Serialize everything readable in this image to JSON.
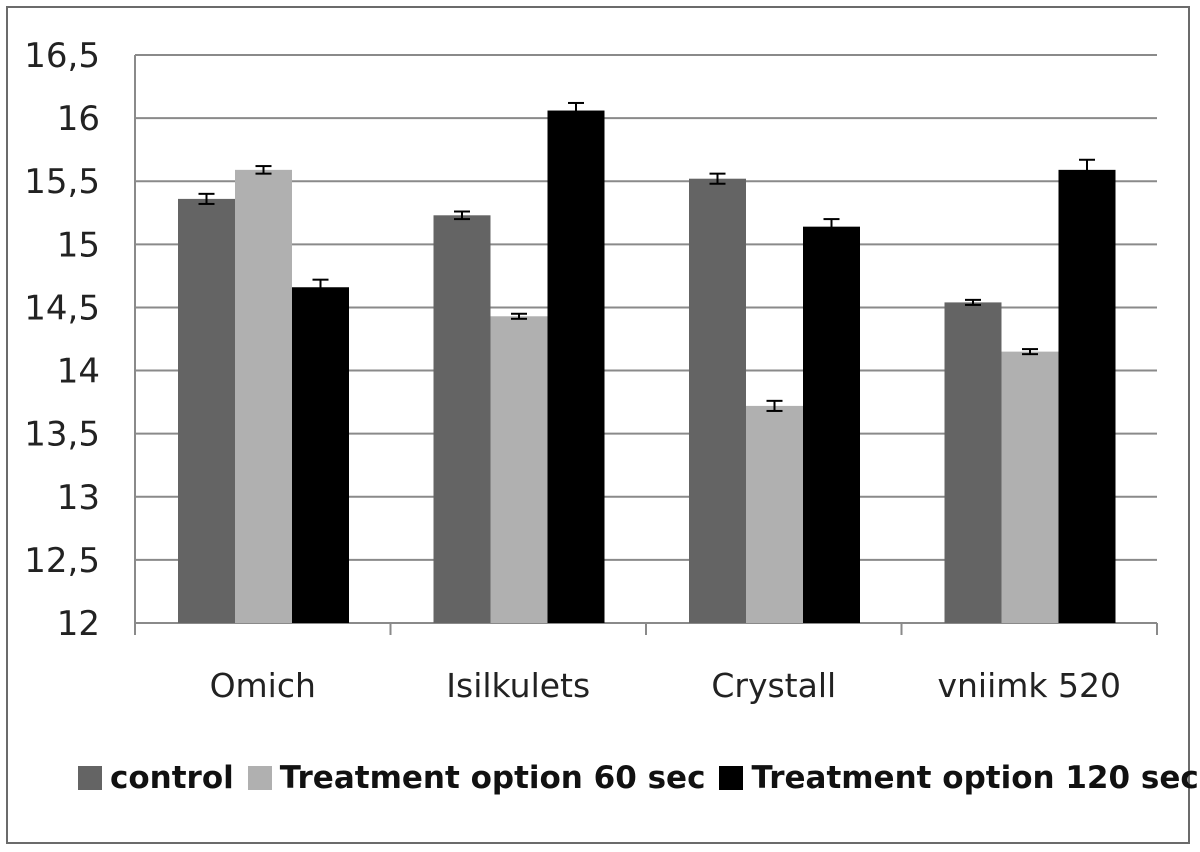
{
  "chart_data": {
    "type": "bar",
    "categories": [
      "Omich",
      "Isilkulets",
      "Crystall",
      "vniimk 520"
    ],
    "series": [
      {
        "name": "control",
        "values": [
          15.36,
          15.23,
          15.52,
          14.54
        ],
        "errors": [
          0.04,
          0.03,
          0.04,
          0.02
        ],
        "color": "#646464"
      },
      {
        "name": "Treatment option 60 sec",
        "values": [
          15.59,
          14.43,
          13.72,
          14.15
        ],
        "errors": [
          0.03,
          0.02,
          0.04,
          0.02
        ],
        "color": "#b0b0b0"
      },
      {
        "name": "Treatment option 120 sec",
        "values": [
          14.66,
          16.06,
          15.14,
          15.59
        ],
        "errors": [
          0.06,
          0.06,
          0.06,
          0.08
        ],
        "color": "#000000"
      }
    ],
    "yticks": [
      "12",
      "12,5",
      "13",
      "13,5",
      "14",
      "14,5",
      "15",
      "15,5",
      "16",
      "16,5"
    ],
    "ylim": [
      12,
      16.5
    ],
    "grid": true,
    "legend_position": "bottom",
    "title": "",
    "xlabel": "",
    "ylabel": ""
  }
}
